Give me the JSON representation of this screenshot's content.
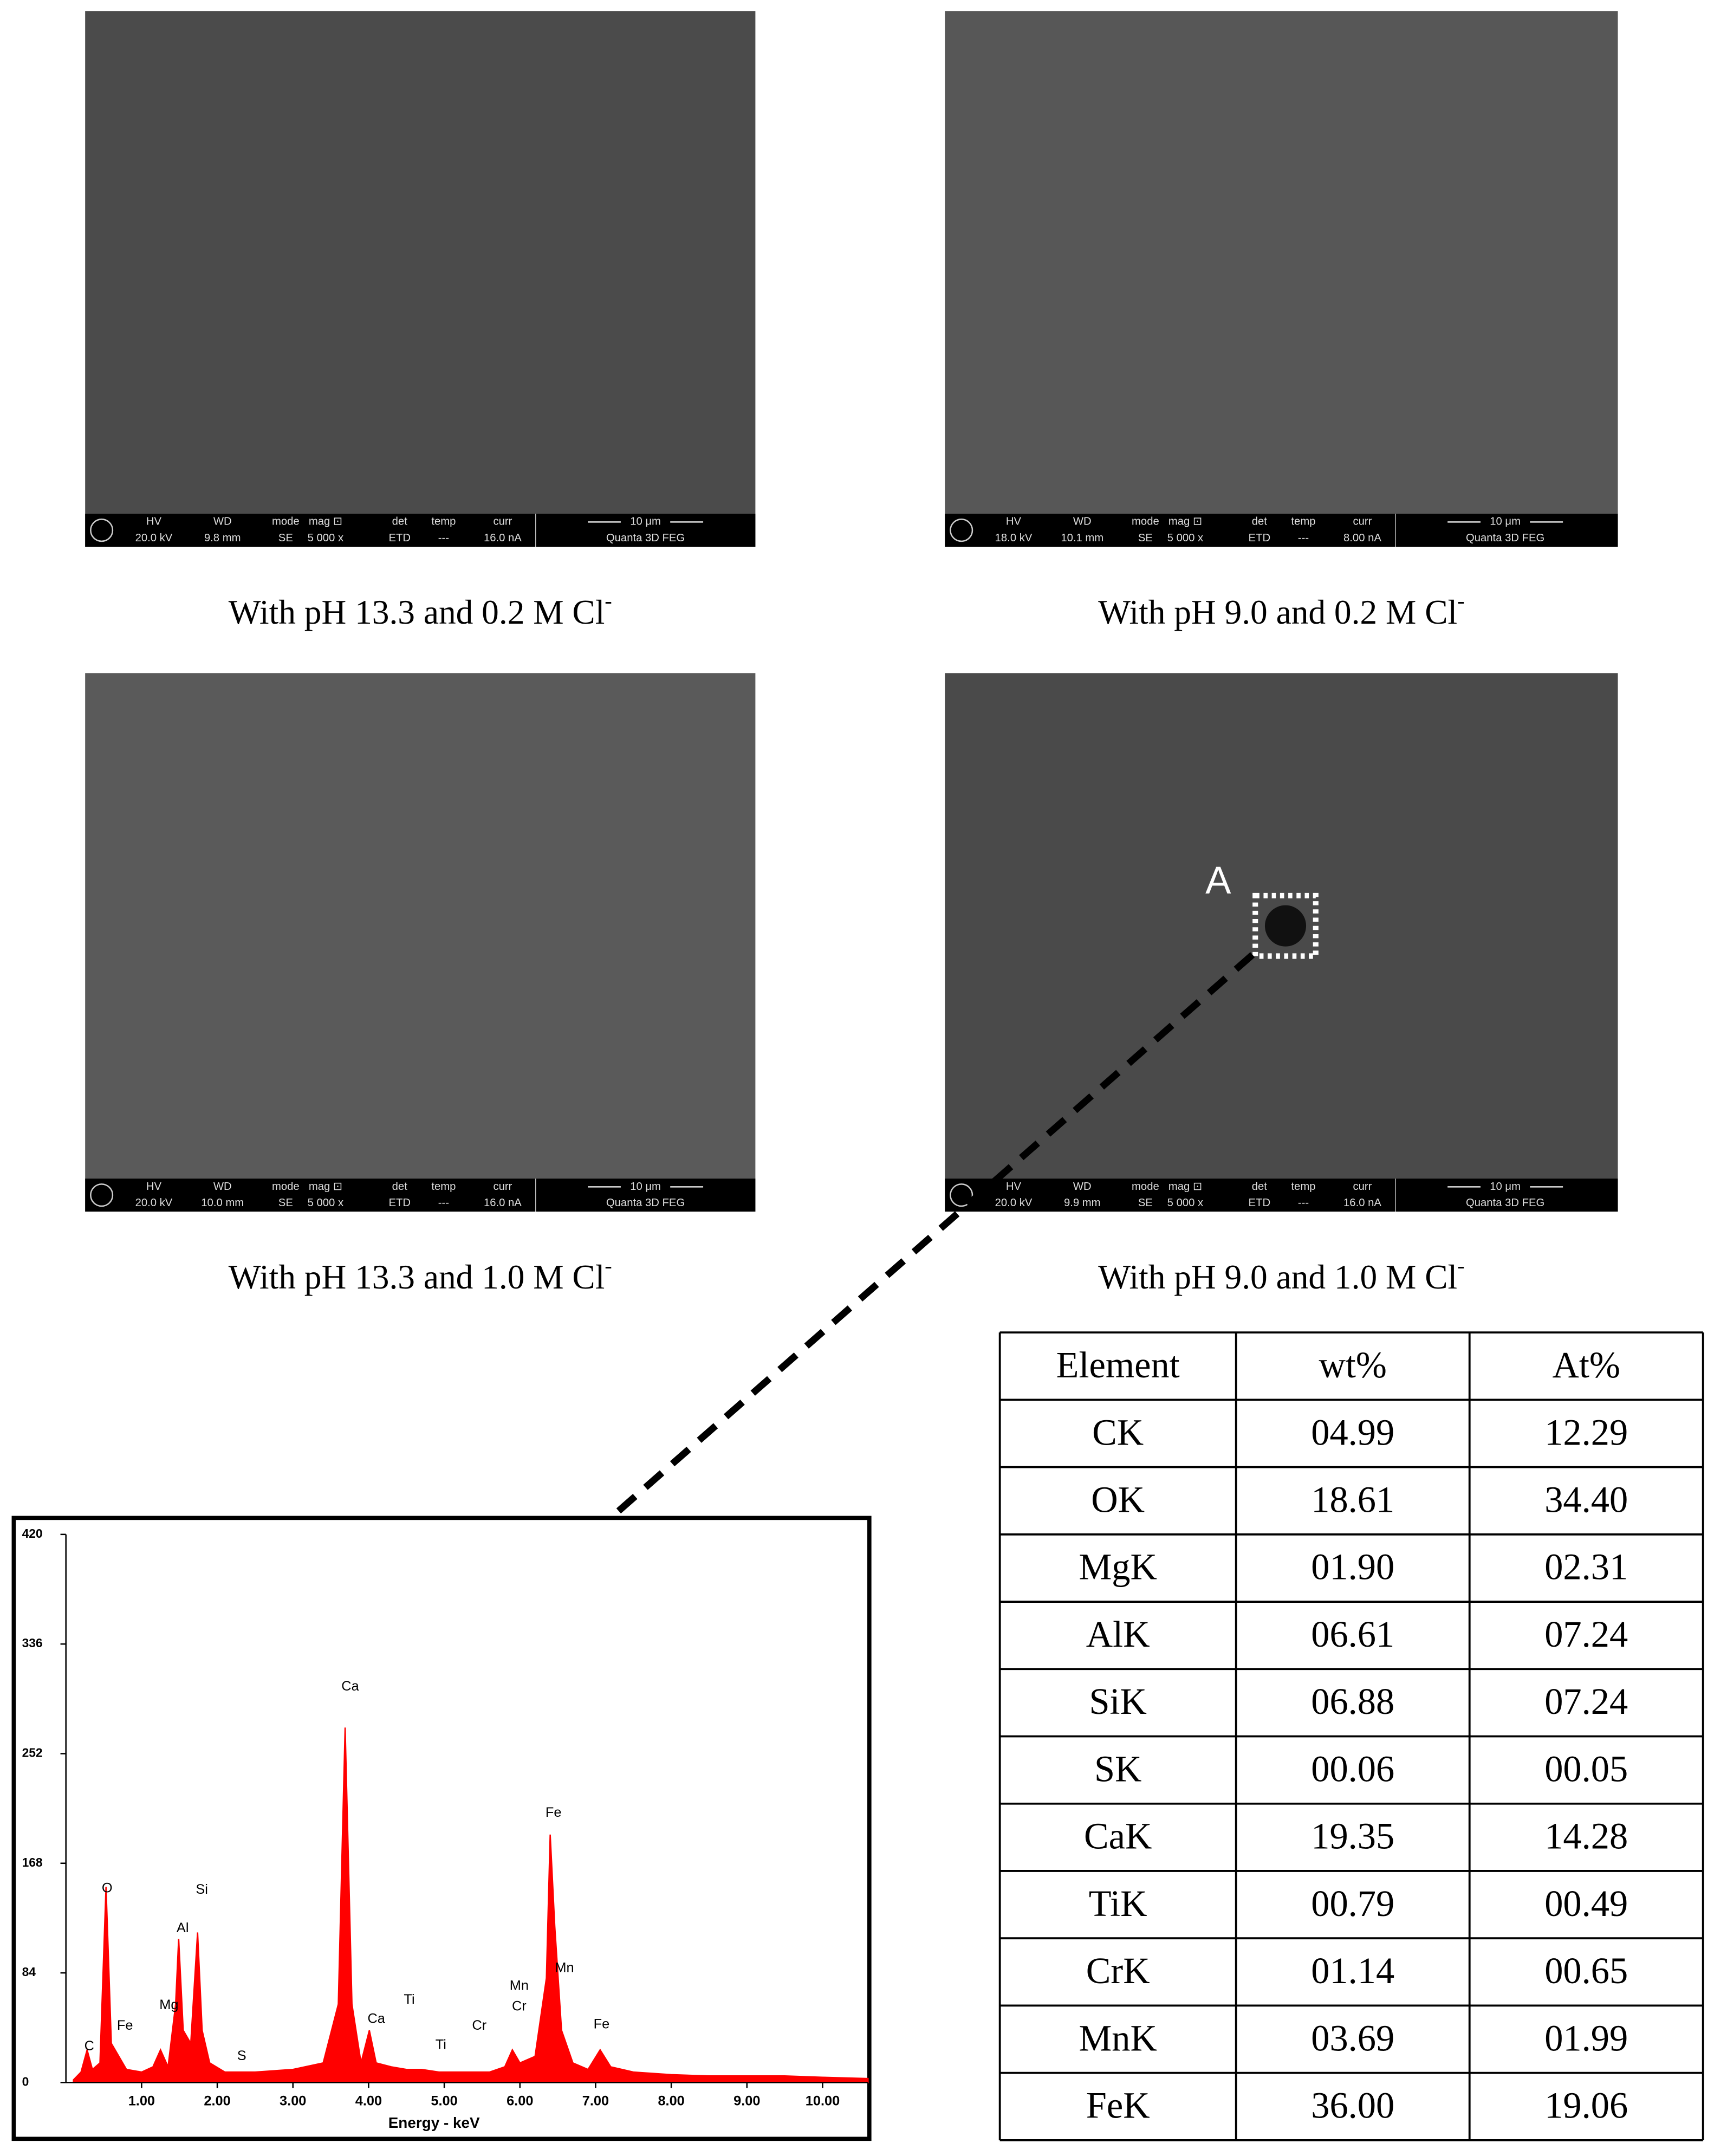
{
  "sem_info_labels": [
    "HV",
    "WD",
    "mode",
    "mag ⊡",
    "det",
    "temp",
    "curr"
  ],
  "sem_scale": "10 μm",
  "sem_instrument": "Quanta 3D FEG",
  "panels": [
    {
      "info": [
        "20.0 kV",
        "9.8 mm",
        "SE",
        "5 000 x",
        "ETD",
        "---",
        "16.0 nA"
      ],
      "caption": {
        "text": "With pH 13.3 and 0.2 M Cl",
        "superscript": "-"
      }
    },
    {
      "info": [
        "18.0 kV",
        "10.1 mm",
        "SE",
        "5 000 x",
        "ETD",
        "---",
        "8.00 nA"
      ],
      "caption": {
        "text": "With pH 9.0 and 0.2 M Cl",
        "superscript": "-"
      }
    },
    {
      "info": [
        "20.0 kV",
        "10.0 mm",
        "SE",
        "5 000 x",
        "ETD",
        "---",
        "16.0 nA"
      ],
      "caption": {
        "text": "With pH 13.3 and 1.0 M Cl",
        "superscript": "-"
      }
    },
    {
      "info": [
        "20.0 kV",
        "9.9 mm",
        "SE",
        "5 000 x",
        "ETD",
        "---",
        "16.0 nA"
      ],
      "caption": {
        "text": "With pH 9.0 and 1.0 M Cl",
        "superscript": "-"
      }
    }
  ],
  "marker_label": "A",
  "table": {
    "header": [
      "Element",
      "wt%",
      "At%"
    ],
    "rows": [
      [
        "CK",
        "04.99",
        "12.29"
      ],
      [
        "OK",
        "18.61",
        "34.40"
      ],
      [
        "MgK",
        "01.90",
        "02.31"
      ],
      [
        "AlK",
        "06.61",
        "07.24"
      ],
      [
        "SiK",
        "06.88",
        "07.24"
      ],
      [
        "SK",
        "00.06",
        "00.05"
      ],
      [
        "CaK",
        "19.35",
        "14.28"
      ],
      [
        "TiK",
        "00.79",
        "00.49"
      ],
      [
        "CrK",
        "01.14",
        "00.65"
      ],
      [
        "MnK",
        "03.69",
        "01.99"
      ],
      [
        "FeK",
        "36.00",
        "19.06"
      ]
    ]
  },
  "chart_data": {
    "type": "area",
    "xlabel": "Energy - keV",
    "color": "#ff0000",
    "x": [
      0.1,
      0.2,
      0.28,
      0.35,
      0.45,
      0.53,
      0.6,
      0.7,
      0.8,
      1.0,
      1.15,
      1.25,
      1.35,
      1.45,
      1.49,
      1.55,
      1.65,
      1.74,
      1.8,
      1.9,
      2.1,
      2.3,
      2.5,
      3.0,
      3.4,
      3.6,
      3.69,
      3.78,
      3.9,
      4.01,
      4.1,
      4.3,
      4.5,
      4.7,
      4.93,
      5.2,
      5.41,
      5.6,
      5.8,
      5.9,
      6.0,
      6.2,
      6.35,
      6.4,
      6.46,
      6.55,
      6.7,
      6.9,
      7.06,
      7.2,
      7.5,
      8.0,
      8.5,
      9.0,
      9.5,
      10.0,
      10.6
    ],
    "values": [
      2,
      8,
      25,
      10,
      15,
      150,
      30,
      20,
      10,
      8,
      12,
      25,
      12,
      60,
      110,
      40,
      30,
      115,
      40,
      15,
      8,
      8,
      8,
      10,
      15,
      60,
      272,
      60,
      15,
      40,
      15,
      12,
      10,
      10,
      8,
      8,
      8,
      8,
      12,
      25,
      15,
      20,
      80,
      190,
      120,
      40,
      15,
      10,
      25,
      12,
      8,
      6,
      5,
      5,
      5,
      4,
      3
    ],
    "xlim": [
      0,
      10.6
    ],
    "ylim": [
      0,
      420
    ],
    "xticks": [
      {
        "value": 1,
        "label": "1.00"
      },
      {
        "value": 2,
        "label": "2.00"
      },
      {
        "value": 3,
        "label": "3.00"
      },
      {
        "value": 4,
        "label": "4.00"
      },
      {
        "value": 5,
        "label": "5.00"
      },
      {
        "value": 6,
        "label": "6.00"
      },
      {
        "value": 7,
        "label": "7.00"
      },
      {
        "value": 8,
        "label": "8.00"
      },
      {
        "value": 9,
        "label": "9.00"
      },
      {
        "value": 10,
        "label": "10.00"
      }
    ],
    "yticks": [
      0,
      84,
      168,
      252,
      336,
      420
    ],
    "annotations": [
      "C",
      "Fe",
      "O",
      "Mg",
      "Al",
      "Si",
      "S",
      "Ca",
      "Ca",
      "Ti",
      "Ti",
      "Cr",
      "Mn",
      "Cr",
      "Fe",
      "Mn",
      "Fe"
    ]
  }
}
